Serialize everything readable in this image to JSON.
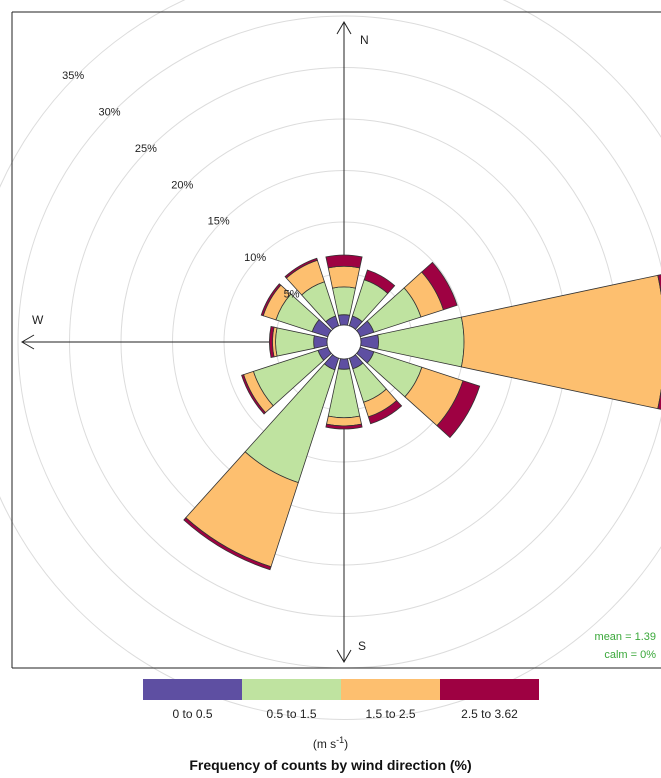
{
  "chart_data": {
    "type": "polar-bar",
    "title": "Frequency of counts by wind direction (%)",
    "unit_label": "(m s",
    "unit_sup": "-1",
    "unit_close": ")",
    "ring_labels": [
      "5%",
      "10%",
      "15%",
      "20%",
      "25%",
      "30%",
      "35%"
    ],
    "ring_values": [
      5,
      10,
      15,
      20,
      25,
      30,
      35
    ],
    "compass": {
      "N": "N",
      "W": "W",
      "S": "S"
    },
    "mean_text": "mean = 1.39",
    "calm_text": "calm = 0%",
    "bins": [
      {
        "name": "0 to 0.5",
        "color": "#5e4fa2"
      },
      {
        "name": "0.5 to 1.5",
        "color": "#bfe3a0"
      },
      {
        "name": "1.5 to 2.5",
        "color": "#fdbf6f"
      },
      {
        "name": "2.5 to 3.62",
        "color": "#9e0142"
      }
    ],
    "directions": [
      0,
      30,
      60,
      90,
      120,
      150,
      180,
      210,
      240,
      270,
      300,
      330
    ],
    "cumulative": [
      [
        1.0,
        3.7,
        5.7,
        6.8
      ],
      [
        1.0,
        4.7,
        4.7,
        5.7
      ],
      [
        1.4,
        6.2,
        8.5,
        9.9
      ],
      [
        1.7,
        10.0,
        29.5,
        29.9
      ],
      [
        1.4,
        6.3,
        10.5,
        12.2
      ],
      [
        1.1,
        4.5,
        6.0,
        6.7
      ],
      [
        1.0,
        5.7,
        6.5,
        6.8
      ],
      [
        1.2,
        12.7,
        21.3,
        21.6
      ],
      [
        1.0,
        7.6,
        8.6,
        8.8
      ],
      [
        1.3,
        5.0,
        5.3,
        5.6
      ],
      [
        1.6,
        5.3,
        6.6,
        6.8
      ],
      [
        1.0,
        4.5,
        6.7,
        6.9
      ]
    ]
  }
}
